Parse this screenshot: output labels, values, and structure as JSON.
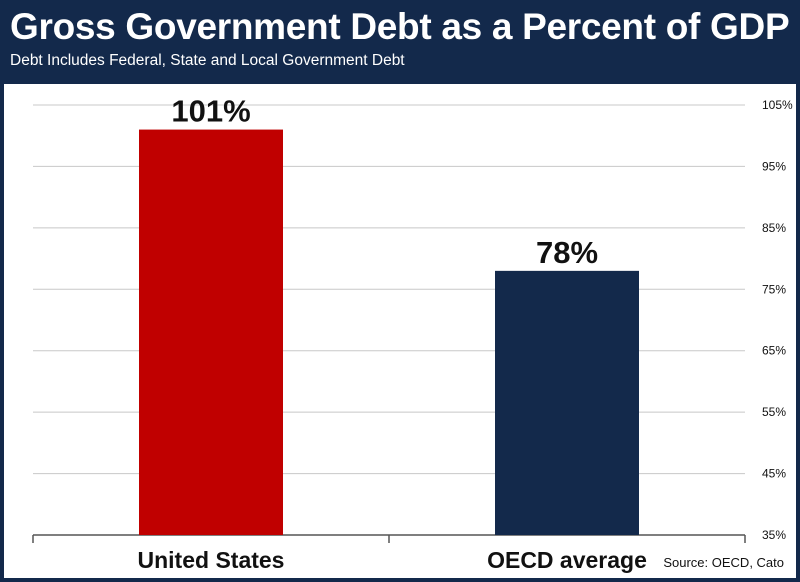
{
  "header": {
    "title": "Gross Government Debt as a Percent of GDP",
    "subtitle": "Debt Includes Federal, State and Local Government Debt"
  },
  "source": "Source: OECD, Cato",
  "colors": {
    "header_bg": "#13294b",
    "united_states": "#c00000",
    "oecd_average": "#13294b"
  },
  "chart_data": {
    "type": "bar",
    "categories": [
      "United States",
      "OECD average"
    ],
    "values": [
      101,
      78
    ],
    "data_labels": [
      "101%",
      "78%"
    ],
    "bar_colors": [
      "#c00000",
      "#13294b"
    ],
    "ylim": [
      35,
      105
    ],
    "y_ticks": [
      35,
      45,
      55,
      65,
      75,
      85,
      95,
      105
    ],
    "y_tick_labels": [
      "35%",
      "45%",
      "55%",
      "65%",
      "75%",
      "85%",
      "95%",
      "105%"
    ],
    "y_axis_side": "right",
    "grid": true
  }
}
